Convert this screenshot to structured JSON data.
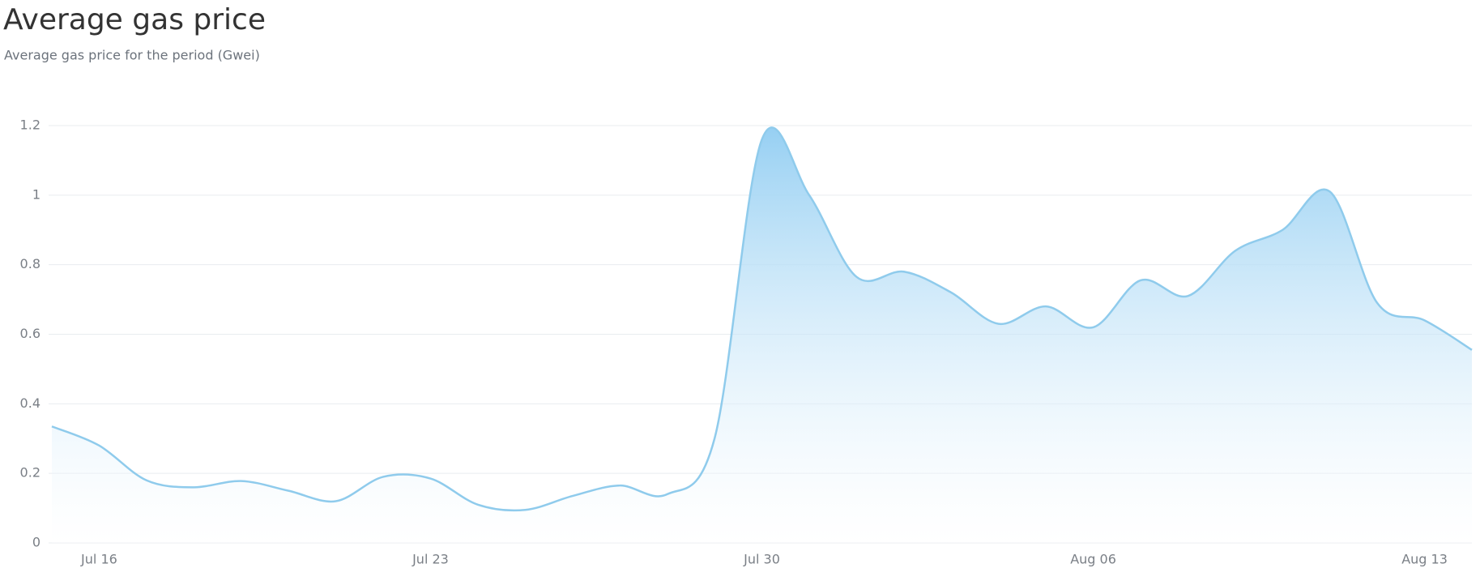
{
  "chart_data": {
    "type": "area",
    "title": "Average gas price",
    "subtitle": "Average gas price for the period (Gwei)",
    "categories": [
      null,
      "Jul 16",
      null,
      null,
      null,
      null,
      null,
      null,
      "Jul 23",
      null,
      null,
      null,
      null,
      null,
      null,
      "Jul 30",
      null,
      null,
      null,
      null,
      null,
      null,
      "Aug 06",
      null,
      null,
      null,
      null,
      null,
      null,
      "Aug 13",
      null
    ],
    "values": [
      0.335,
      0.28,
      0.18,
      0.16,
      0.178,
      0.15,
      0.12,
      0.19,
      0.185,
      0.11,
      0.095,
      0.135,
      0.165,
      0.14,
      0.3,
      1.16,
      1.0,
      0.765,
      0.78,
      0.72,
      0.63,
      0.68,
      0.62,
      0.755,
      0.71,
      0.84,
      0.9,
      1.01,
      0.69,
      0.64,
      0.555
    ],
    "color": "#8fcbec",
    "ylim": [
      0,
      1.2
    ],
    "yticks": [
      0,
      0.2,
      0.4,
      0.6,
      0.8,
      1,
      1.2
    ],
    "grid": true
  }
}
